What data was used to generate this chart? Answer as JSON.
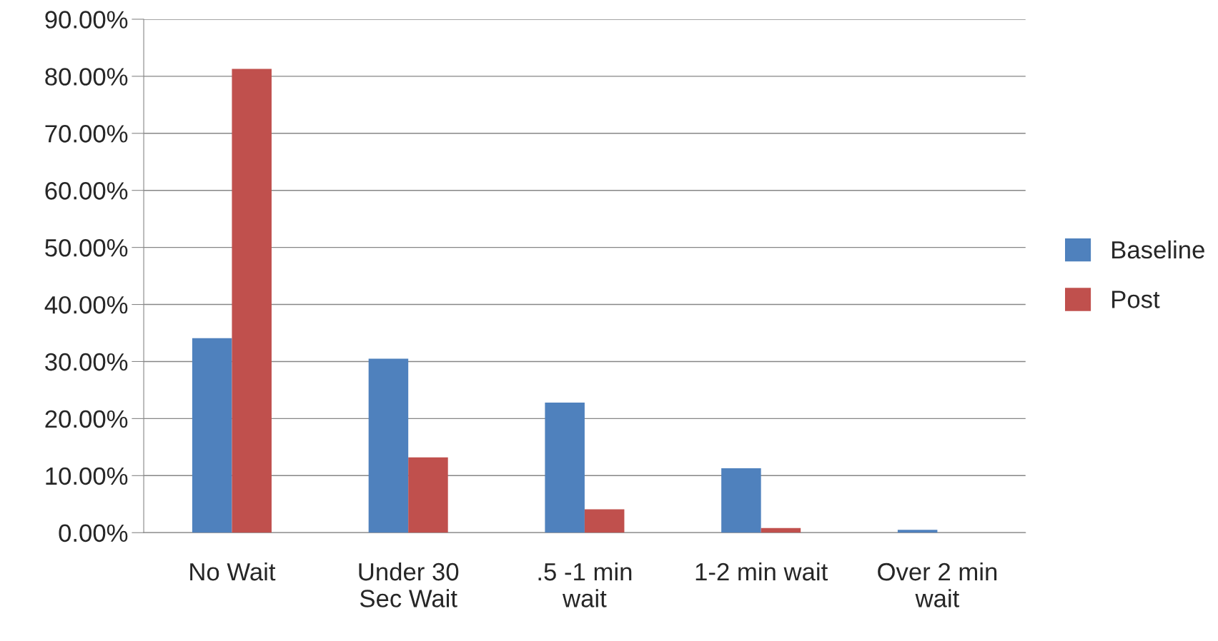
{
  "chart_data": {
    "type": "bar",
    "categories": [
      "No Wait",
      "Under 30\nSec Wait",
      ".5 -1 min\nwait",
      "1-2 min wait",
      "Over 2 min\nwait"
    ],
    "series": [
      {
        "name": "Baseline",
        "color": "#4f81bd",
        "values": [
          34.1,
          30.5,
          22.8,
          11.3,
          0.5
        ]
      },
      {
        "name": "Post",
        "color": "#c0504d",
        "values": [
          81.3,
          13.2,
          4.1,
          0.8,
          null
        ]
      }
    ],
    "ylim": [
      0,
      90
    ],
    "yticks": [
      {
        "value": 0,
        "label": "0.00%"
      },
      {
        "value": 10,
        "label": "10.00%"
      },
      {
        "value": 20,
        "label": "20.00%"
      },
      {
        "value": 30,
        "label": "30.00%"
      },
      {
        "value": 40,
        "label": "40.00%"
      },
      {
        "value": 50,
        "label": "50.00%"
      },
      {
        "value": 60,
        "label": "60.00%"
      },
      {
        "value": 70,
        "label": "70.00%"
      },
      {
        "value": 80,
        "label": "80.00%"
      },
      {
        "value": 90,
        "label": "90.00%"
      }
    ],
    "grid": "y",
    "legend": "right"
  }
}
